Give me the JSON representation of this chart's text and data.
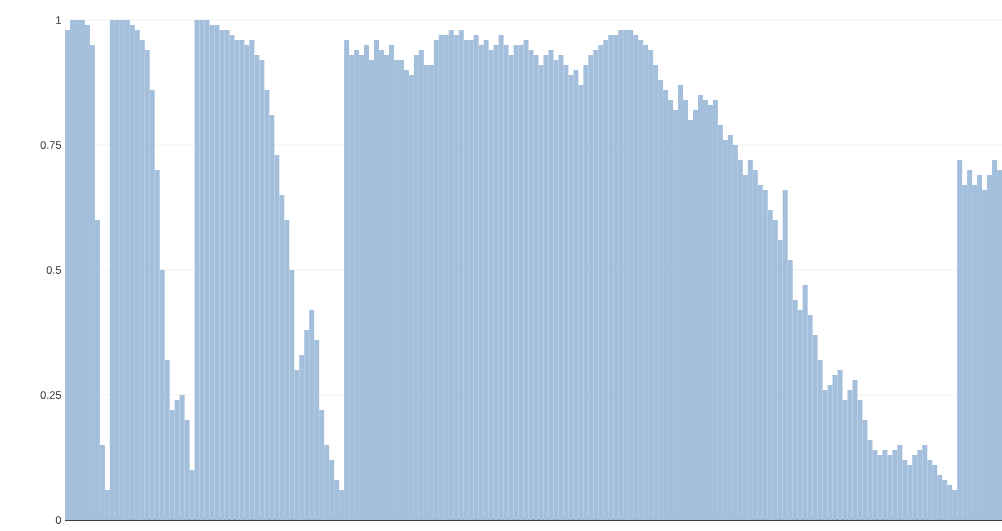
{
  "chart_data": {
    "type": "bar",
    "grid": "y",
    "color": "#a3bfdb",
    "ylim": [
      0,
      1
    ],
    "yticks": [
      0,
      0.25,
      0.5,
      0.75,
      1
    ],
    "categories": [
      null,
      null,
      null,
      null,
      null,
      null,
      null,
      null,
      null,
      null,
      null,
      null,
      null,
      null,
      null,
      null,
      null,
      null,
      null,
      null,
      null,
      null,
      null,
      null,
      null,
      null,
      null,
      null,
      null,
      null,
      null,
      null,
      null,
      null,
      null,
      null,
      null,
      null,
      null,
      null,
      null,
      null,
      null,
      null,
      null,
      null,
      null,
      null,
      null,
      null,
      null,
      null,
      null,
      null,
      null,
      null,
      null,
      null,
      null,
      null,
      null,
      null,
      null,
      null,
      null,
      null,
      null,
      null,
      null,
      null,
      null,
      null,
      null,
      null,
      null,
      null,
      null,
      null,
      null,
      null,
      null,
      null,
      null,
      null,
      null,
      null,
      null,
      null,
      null,
      null,
      null,
      null,
      null,
      null,
      null,
      null,
      null,
      null,
      null,
      null,
      null,
      null,
      null,
      null,
      null,
      null,
      null,
      null,
      null,
      null,
      null,
      null,
      null,
      null,
      null,
      null,
      null,
      null,
      null,
      null,
      null,
      null,
      null,
      null,
      null,
      null,
      null,
      null,
      null,
      null,
      null,
      null,
      null,
      null,
      null,
      null,
      null,
      null,
      null,
      null,
      null,
      null,
      null,
      null,
      null,
      null,
      null,
      null,
      null,
      null,
      null,
      null,
      null,
      null,
      null,
      null,
      null,
      null,
      null,
      null,
      null,
      null,
      null,
      null,
      null,
      null,
      null,
      null,
      null,
      null,
      null,
      null,
      null,
      null,
      null,
      null,
      null,
      null,
      null,
      null,
      null,
      null,
      null,
      null,
      null,
      null,
      null,
      null
    ],
    "values": [
      0.98,
      1,
      1,
      1,
      0.99,
      0.95,
      0.6,
      0.15,
      0.06,
      1,
      1,
      1,
      1,
      0.99,
      0.98,
      0.96,
      0.94,
      0.86,
      0.7,
      0.5,
      0.32,
      0.22,
      0.24,
      0.25,
      0.2,
      0.1,
      1,
      1,
      1,
      0.99,
      0.99,
      0.98,
      0.98,
      0.97,
      0.96,
      0.96,
      0.95,
      0.96,
      0.93,
      0.92,
      0.86,
      0.81,
      0.73,
      0.65,
      0.6,
      0.5,
      0.3,
      0.33,
      0.38,
      0.42,
      0.36,
      0.22,
      0.15,
      0.12,
      0.08,
      0.06,
      0.96,
      0.93,
      0.94,
      0.93,
      0.95,
      0.92,
      0.96,
      0.94,
      0.93,
      0.95,
      0.92,
      0.92,
      0.9,
      0.89,
      0.93,
      0.94,
      0.91,
      0.91,
      0.96,
      0.97,
      0.97,
      0.98,
      0.97,
      0.98,
      0.96,
      0.96,
      0.97,
      0.95,
      0.96,
      0.94,
      0.95,
      0.97,
      0.95,
      0.93,
      0.95,
      0.95,
      0.96,
      0.94,
      0.93,
      0.91,
      0.93,
      0.94,
      0.92,
      0.93,
      0.91,
      0.89,
      0.9,
      0.87,
      0.91,
      0.93,
      0.94,
      0.95,
      0.96,
      0.97,
      0.97,
      0.98,
      0.98,
      0.98,
      0.97,
      0.96,
      0.95,
      0.94,
      0.91,
      0.88,
      0.86,
      0.84,
      0.82,
      0.87,
      0.84,
      0.8,
      0.82,
      0.85,
      0.84,
      0.83,
      0.84,
      0.79,
      0.76,
      0.77,
      0.75,
      0.72,
      0.69,
      0.72,
      0.7,
      0.67,
      0.66,
      0.62,
      0.6,
      0.56,
      0.66,
      0.52,
      0.44,
      0.42,
      0.47,
      0.41,
      0.37,
      0.32,
      0.26,
      0.27,
      0.29,
      0.3,
      0.24,
      0.26,
      0.28,
      0.24,
      0.2,
      0.16,
      0.14,
      0.13,
      0.14,
      0.13,
      0.14,
      0.15,
      0.12,
      0.11,
      0.13,
      0.14,
      0.15,
      0.12,
      0.11,
      0.09,
      0.08,
      0.07,
      0.06,
      0.72,
      0.67,
      0.7,
      0.67,
      0.69,
      0.66,
      0.69,
      0.72,
      0.7
    ]
  }
}
